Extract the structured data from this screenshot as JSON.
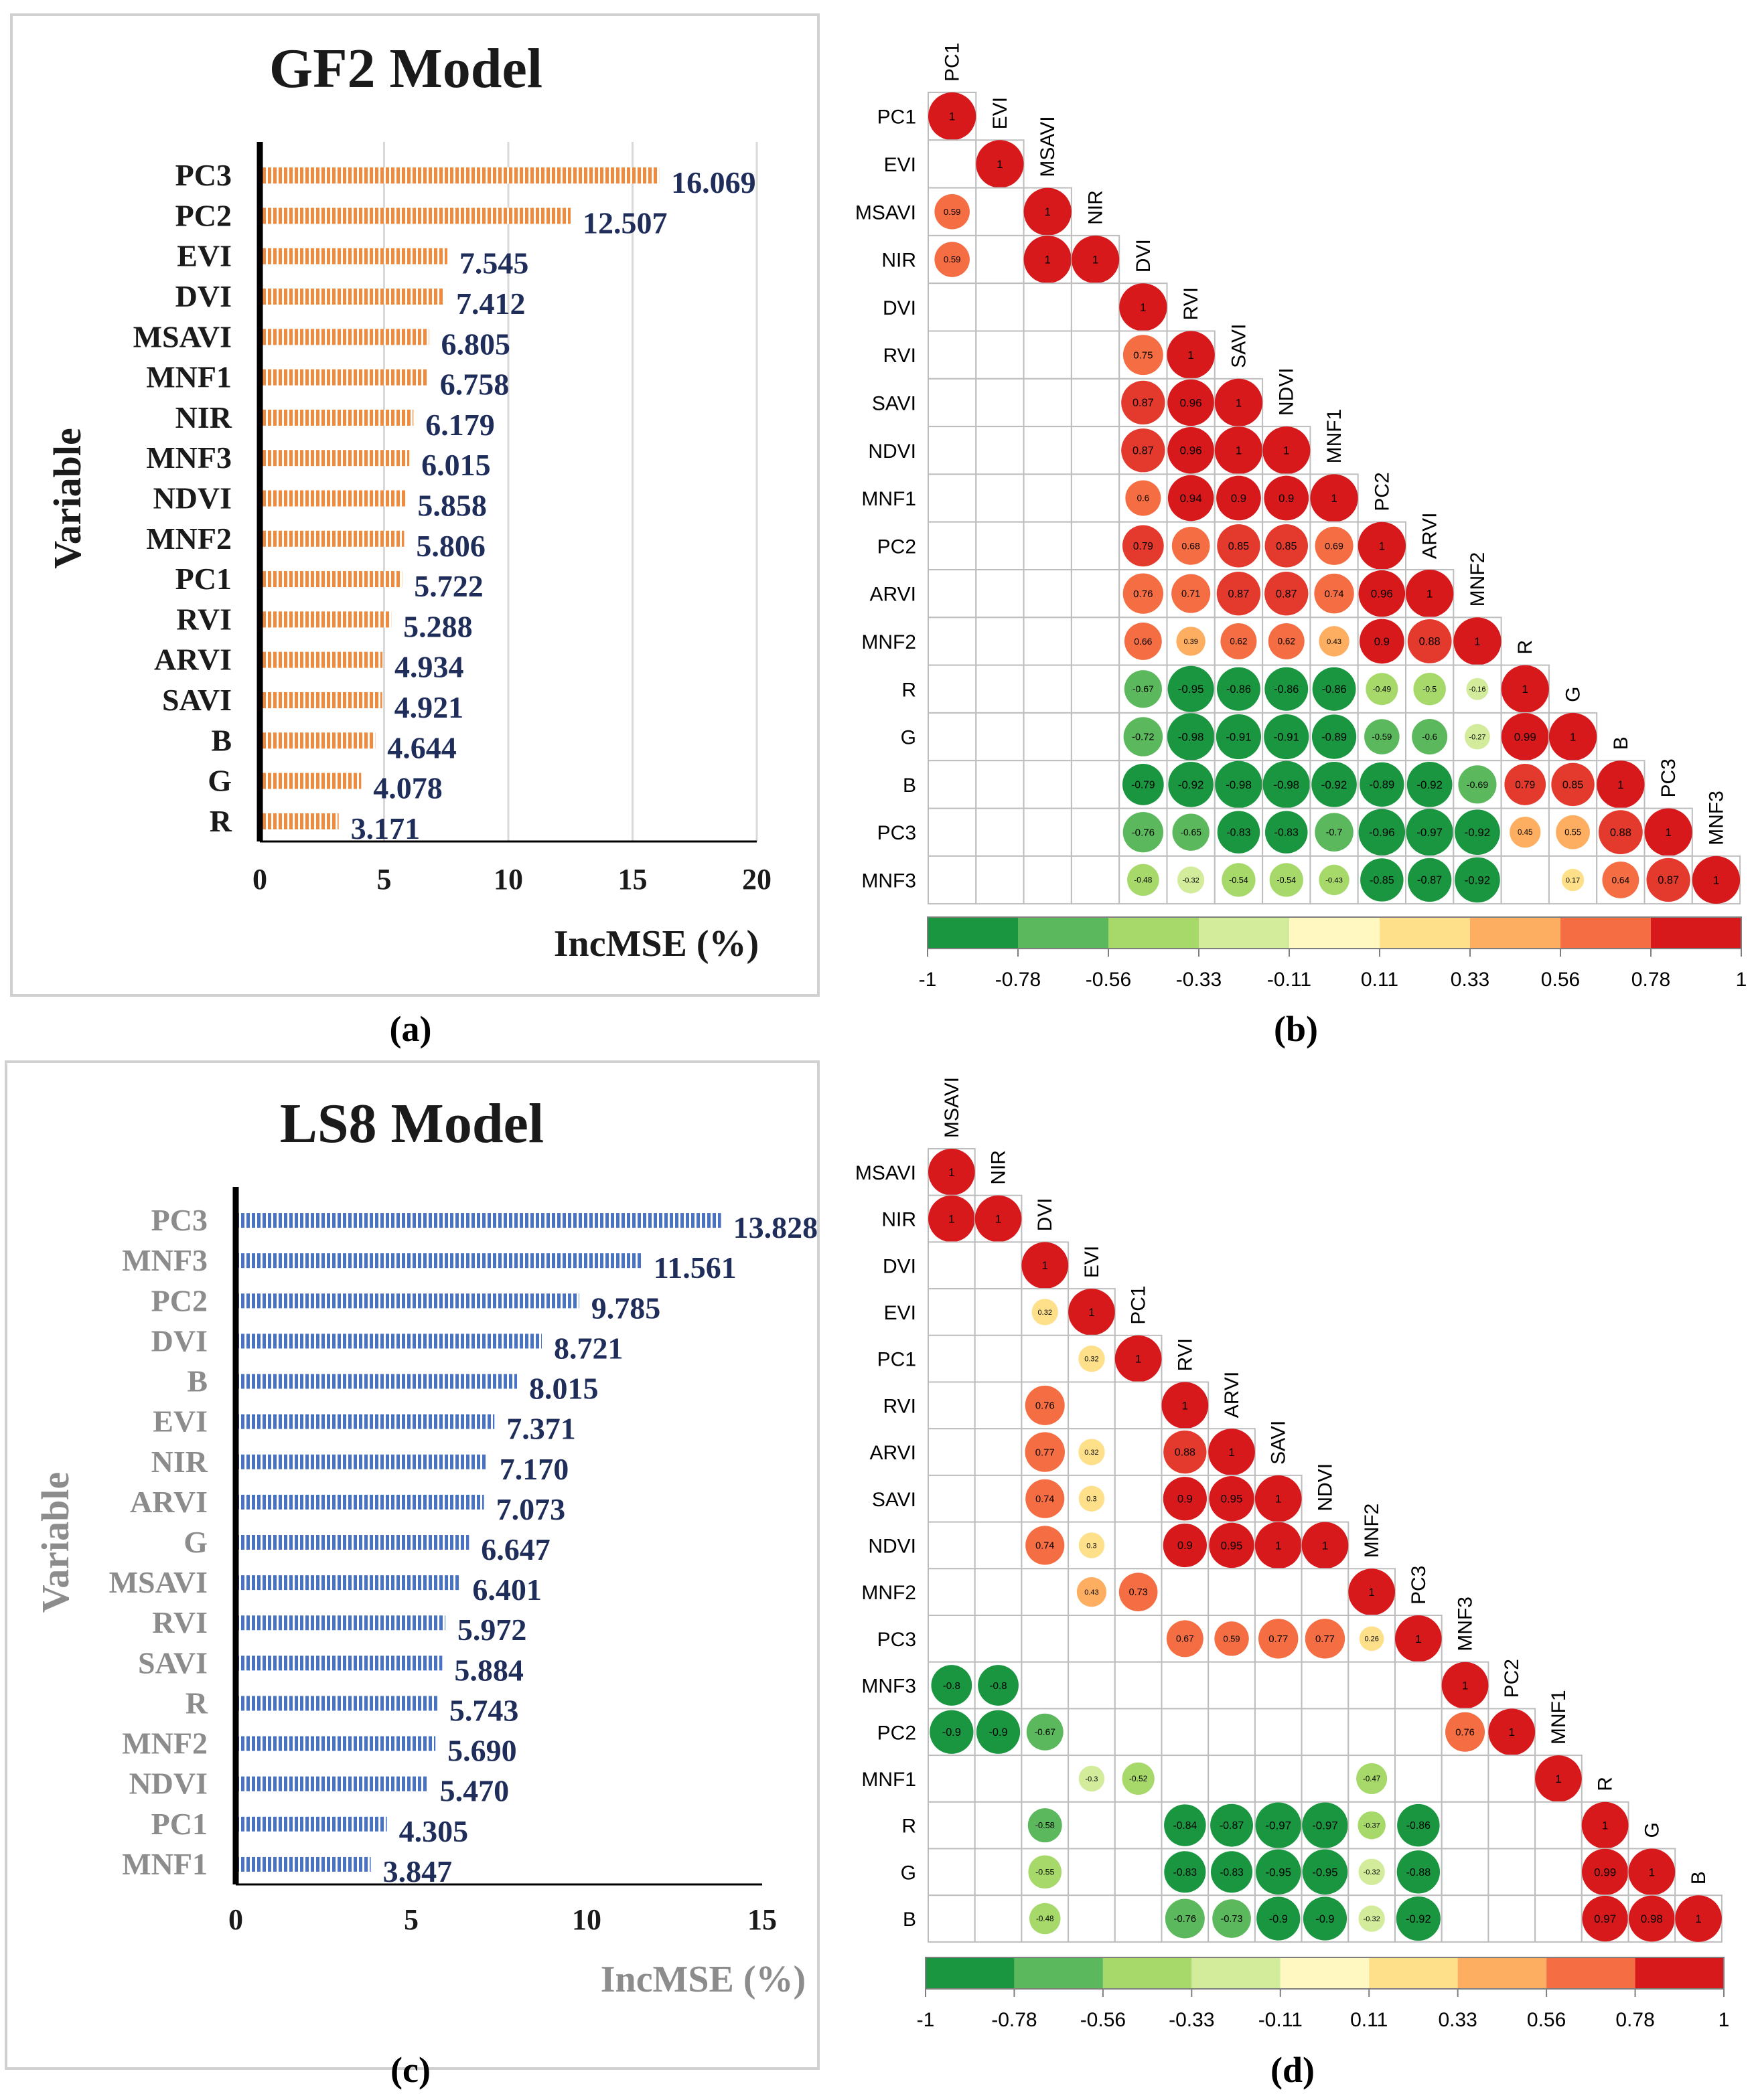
{
  "panel_labels": [
    "(a)",
    "(b)",
    "(c)",
    "(d)"
  ],
  "colors": {
    "gf2_bar": "#f08a3c",
    "ls8_bar": "#4a72c4",
    "value_label": "#1f2d5a",
    "ls8_text": "#8c8c8c",
    "corr_scale": [
      "#1a9641",
      "#5cb85c",
      "#a6d96a",
      "#d2ec9b",
      "#fff8c0",
      "#fee08b",
      "#fdae61",
      "#f46d43",
      "#e43a2e",
      "#d7191c"
    ]
  },
  "chart_data": [
    {
      "type": "bar",
      "id": "gf2",
      "title": "GF2 Model",
      "xlabel": "IncMSE (%)",
      "ylabel": "Variable",
      "xlim": [
        0,
        20
      ],
      "xticks": [
        0,
        5,
        10,
        15,
        20
      ],
      "grid": true,
      "categories": [
        "PC3",
        "PC2",
        "EVI",
        "DVI",
        "MSAVI",
        "MNF1",
        "NIR",
        "MNF3",
        "NDVI",
        "MNF2",
        "PC1",
        "RVI",
        "ARVI",
        "SAVI",
        "B",
        "G",
        "R"
      ],
      "values": [
        16.069,
        12.507,
        7.545,
        7.412,
        6.805,
        6.758,
        6.179,
        6.015,
        5.858,
        5.806,
        5.722,
        5.288,
        4.934,
        4.921,
        4.644,
        4.078,
        3.171
      ],
      "value_labels": [
        "16.069",
        "12.507",
        "7.545",
        "7.412",
        "6.805",
        "6.758",
        "6.179",
        "6.015",
        "5.858",
        "5.806",
        "5.722",
        "5.288",
        "4.934",
        "4.921",
        "4.644",
        "4.078",
        "3.171"
      ]
    },
    {
      "type": "heatmap",
      "id": "gf2corr",
      "variables": [
        "PC1",
        "EVI",
        "MSAVI",
        "NIR",
        "DVI",
        "RVI",
        "SAVI",
        "NDVI",
        "MNF1",
        "PC2",
        "ARVI",
        "MNF2",
        "R",
        "G",
        "B",
        "PC3",
        "MNF3"
      ],
      "rows": [
        [
          1
        ],
        [
          null,
          1
        ],
        [
          0.59,
          null,
          1
        ],
        [
          0.59,
          null,
          1,
          1
        ],
        [
          null,
          null,
          null,
          null,
          1
        ],
        [
          null,
          null,
          null,
          null,
          0.75,
          1
        ],
        [
          null,
          null,
          null,
          null,
          0.87,
          0.96,
          1
        ],
        [
          null,
          null,
          null,
          null,
          0.87,
          0.96,
          1,
          1
        ],
        [
          null,
          null,
          null,
          null,
          0.6,
          0.94,
          0.9,
          0.9,
          1
        ],
        [
          null,
          null,
          null,
          null,
          0.79,
          0.68,
          0.85,
          0.85,
          0.69,
          1
        ],
        [
          null,
          null,
          null,
          null,
          0.76,
          0.71,
          0.87,
          0.87,
          0.74,
          0.96,
          1
        ],
        [
          null,
          null,
          null,
          null,
          0.66,
          0.39,
          0.62,
          0.62,
          0.43,
          0.9,
          0.88,
          1
        ],
        [
          null,
          null,
          null,
          null,
          -0.67,
          -0.95,
          -0.86,
          -0.86,
          -0.86,
          -0.49,
          -0.5,
          -0.16,
          1
        ],
        [
          null,
          null,
          null,
          null,
          -0.72,
          -0.98,
          -0.91,
          -0.91,
          -0.89,
          -0.59,
          -0.6,
          -0.27,
          0.99,
          1
        ],
        [
          null,
          null,
          null,
          null,
          -0.79,
          -0.92,
          -0.98,
          -0.98,
          -0.92,
          -0.89,
          -0.92,
          -0.69,
          0.79,
          0.85,
          1
        ],
        [
          null,
          null,
          null,
          null,
          -0.76,
          -0.65,
          -0.83,
          -0.83,
          -0.7,
          -0.96,
          -0.97,
          -0.92,
          0.45,
          0.55,
          0.88,
          1
        ],
        [
          null,
          null,
          null,
          null,
          -0.48,
          -0.32,
          -0.54,
          -0.54,
          -0.43,
          -0.85,
          -0.87,
          -0.92,
          null,
          0.17,
          0.64,
          0.87,
          1
        ]
      ],
      "colorbar_ticks": [
        "-1",
        "-0.78",
        "-0.56",
        "-0.33",
        "-0.11",
        "0.11",
        "0.33",
        "0.56",
        "0.78",
        "1"
      ]
    },
    {
      "type": "bar",
      "id": "ls8",
      "title": "LS8 Model",
      "xlabel": "IncMSE (%)",
      "ylabel": "Variable",
      "xlim": [
        0,
        15
      ],
      "xticks": [
        0,
        5,
        10,
        15
      ],
      "grid": false,
      "categories": [
        "PC3",
        "MNF3",
        "PC2",
        "DVI",
        "B",
        "EVI",
        "NIR",
        "ARVI",
        "G",
        "MSAVI",
        "RVI",
        "SAVI",
        "R",
        "MNF2",
        "NDVI",
        "PC1",
        "MNF1"
      ],
      "values": [
        13.828,
        11.561,
        9.785,
        8.721,
        8.015,
        7.371,
        7.17,
        7.073,
        6.647,
        6.401,
        5.972,
        5.884,
        5.743,
        5.69,
        5.47,
        4.305,
        3.847
      ],
      "value_labels": [
        "13.828",
        "11.561",
        "9.785",
        "8.721",
        "8.015",
        "7.371",
        "7.170",
        "7.073",
        "6.647",
        "6.401",
        "5.972",
        "5.884",
        "5.743",
        "5.690",
        "5.470",
        "4.305",
        "3.847"
      ]
    },
    {
      "type": "heatmap",
      "id": "ls8corr",
      "variables": [
        "MSAVI",
        "NIR",
        "DVI",
        "EVI",
        "PC1",
        "RVI",
        "ARVI",
        "SAVI",
        "NDVI",
        "MNF2",
        "PC3",
        "MNF3",
        "PC2",
        "MNF1",
        "R",
        "G",
        "B"
      ],
      "rows": [
        [
          1
        ],
        [
          1,
          1
        ],
        [
          null,
          null,
          1
        ],
        [
          null,
          null,
          0.32,
          1
        ],
        [
          null,
          null,
          null,
          0.32,
          1
        ],
        [
          null,
          null,
          0.76,
          null,
          null,
          1
        ],
        [
          null,
          null,
          0.77,
          0.32,
          null,
          0.88,
          1
        ],
        [
          null,
          null,
          0.74,
          0.3,
          null,
          0.9,
          0.95,
          1
        ],
        [
          null,
          null,
          0.74,
          0.3,
          null,
          0.9,
          0.95,
          1,
          1
        ],
        [
          null,
          null,
          null,
          0.43,
          0.73,
          null,
          null,
          null,
          null,
          1
        ],
        [
          null,
          null,
          null,
          null,
          null,
          0.67,
          0.59,
          0.77,
          0.77,
          0.26,
          1
        ],
        [
          -0.8,
          -0.8,
          null,
          null,
          null,
          null,
          null,
          null,
          null,
          null,
          null,
          1
        ],
        [
          -0.9,
          -0.9,
          -0.67,
          null,
          null,
          null,
          null,
          null,
          null,
          null,
          null,
          0.76,
          1
        ],
        [
          null,
          null,
          null,
          -0.3,
          -0.52,
          null,
          null,
          null,
          null,
          -0.47,
          null,
          null,
          null,
          1
        ],
        [
          null,
          null,
          -0.58,
          null,
          null,
          -0.84,
          -0.87,
          -0.97,
          -0.97,
          -0.37,
          -0.86,
          null,
          null,
          null,
          1
        ],
        [
          null,
          null,
          -0.55,
          null,
          null,
          -0.83,
          -0.83,
          -0.95,
          -0.95,
          -0.32,
          -0.88,
          null,
          null,
          null,
          0.99,
          1
        ],
        [
          null,
          null,
          -0.48,
          null,
          null,
          -0.76,
          -0.73,
          -0.9,
          -0.9,
          -0.32,
          -0.92,
          null,
          null,
          null,
          0.97,
          0.98,
          1
        ]
      ],
      "colorbar_ticks": [
        "-1",
        "-0.78",
        "-0.56",
        "-0.33",
        "-0.11",
        "0.11",
        "0.33",
        "0.56",
        "0.78",
        "1"
      ]
    }
  ]
}
